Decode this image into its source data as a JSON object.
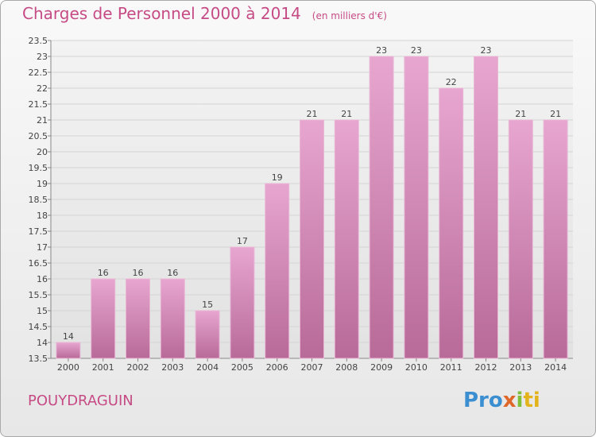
{
  "title": "Charges de Personnel 2000 à 2014",
  "unit_note": "(en milliers d'€)",
  "commune": "POUYDRAGUIN",
  "logo": {
    "p1": "Pro",
    "p2": "x",
    "p3": "i",
    "p4": "ti"
  },
  "colors": {
    "bar_top": "#e7a6d0",
    "bar_bottom": "#b86a98",
    "title": "#c64b85"
  },
  "chart_data": {
    "type": "bar",
    "title": "Charges de Personnel 2000 à 2014",
    "xlabel": "",
    "ylabel": "",
    "categories": [
      "2000",
      "2001",
      "2002",
      "2003",
      "2004",
      "2005",
      "2006",
      "2007",
      "2008",
      "2009",
      "2010",
      "2011",
      "2012",
      "2013",
      "2014"
    ],
    "values": [
      14,
      16,
      16,
      16,
      15,
      17,
      19,
      21,
      21,
      23,
      23,
      22,
      23,
      21,
      21
    ],
    "ylim": [
      13.5,
      23.5
    ],
    "yticks": [
      "13.5",
      "14",
      "14.5",
      "15",
      "15.5",
      "16",
      "16.5",
      "17",
      "17.5",
      "18",
      "18.5",
      "19",
      "19.5",
      "20",
      "20.5",
      "21",
      "21.5",
      "22",
      "22.5",
      "23",
      "23.5"
    ],
    "grid": true
  }
}
